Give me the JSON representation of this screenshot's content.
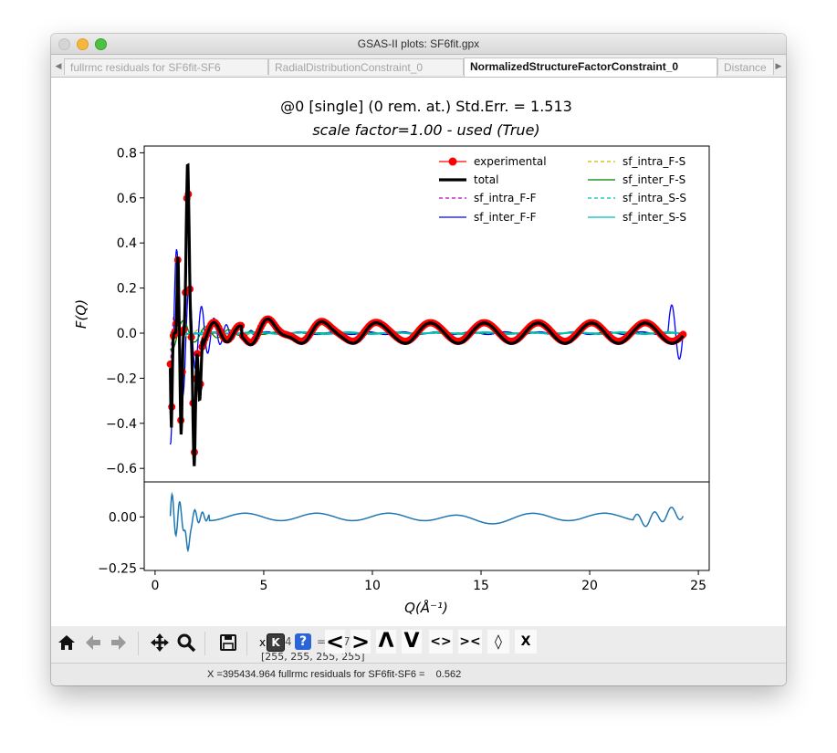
{
  "window": {
    "title": "GSAS-II plots: SF6fit.gpx"
  },
  "tabs": [
    {
      "label": "fullrmc residuals for SF6fit-SF6",
      "active": false
    },
    {
      "label": "RadialDistributionConstraint_0",
      "active": false
    },
    {
      "label": "NormalizedStructureFactorConstraint_0",
      "active": true
    },
    {
      "label": "Distance",
      "active": false
    }
  ],
  "toolbar": {
    "icons": [
      "home-icon",
      "back-arrow-icon",
      "forward-arrow-icon",
      "pan-icon",
      "zoom-icon",
      "save-icon"
    ],
    "key_text": "x",
    "pixel_text": "[255, 255, 255, 255]",
    "arrow_glyphs": [
      "<",
      ">",
      "Λ",
      "V",
      "<>",
      "><",
      "◊",
      "Ⅹ"
    ],
    "partial_text": [
      "4",
      "=",
      "7"
    ]
  },
  "status": {
    "text": "X =395434.964 fullrmc residuals for SF6fit-SF6 =    0.562"
  },
  "chart_data": {
    "type": "line",
    "title_line1": "@0 [single] (0 rem. at.) Std.Err. = 1.513",
    "title_line2": "scale factor=1.00 - used (True)",
    "xlabel": "Q(Å⁻¹)",
    "ylabel": "F(Q)",
    "xlim": [
      -0.5,
      25.5
    ],
    "ylim": [
      -0.66,
      0.83
    ],
    "xticks": [
      0,
      5,
      10,
      15,
      20,
      25
    ],
    "yticks": [
      "0.8",
      "0.6",
      "0.4",
      "0.2",
      "0.0",
      "−0.2",
      "−0.4",
      "−0.6"
    ],
    "ytick_values": [
      0.8,
      0.6,
      0.4,
      0.2,
      0.0,
      -0.2,
      -0.4,
      -0.6
    ],
    "residual_ylim": [
      -0.26,
      0.17
    ],
    "residual_yticks": [
      "0.00",
      "−0.25"
    ],
    "residual_ytick_values": [
      0.0,
      -0.25
    ],
    "legend_position": "top-right",
    "series": [
      {
        "name": "experimental",
        "color": "#ff0000",
        "style": "line+dots"
      },
      {
        "name": "total",
        "color": "#000000",
        "style": "thick"
      },
      {
        "name": "sf_intra_F-F",
        "color": "#bf00bf",
        "style": "dashed"
      },
      {
        "name": "sf_inter_F-F",
        "color": "#0000ff",
        "style": "solid"
      },
      {
        "name": "sf_intra_F-S",
        "color": "#bfbf00",
        "style": "dashed"
      },
      {
        "name": "sf_inter_F-S",
        "color": "#008000",
        "style": "solid"
      },
      {
        "name": "sf_intra_S-S",
        "color": "#00bfbf",
        "style": "dashed"
      },
      {
        "name": "sf_inter_S-S",
        "color": "#00bfbf",
        "style": "solid"
      }
    ],
    "residual_color": "#1f77b4",
    "peak": {
      "x": 1.5,
      "y": 0.76
    },
    "min": {
      "x": 1.8,
      "y": -0.59
    },
    "q_range": [
      0.7,
      24.3
    ]
  }
}
